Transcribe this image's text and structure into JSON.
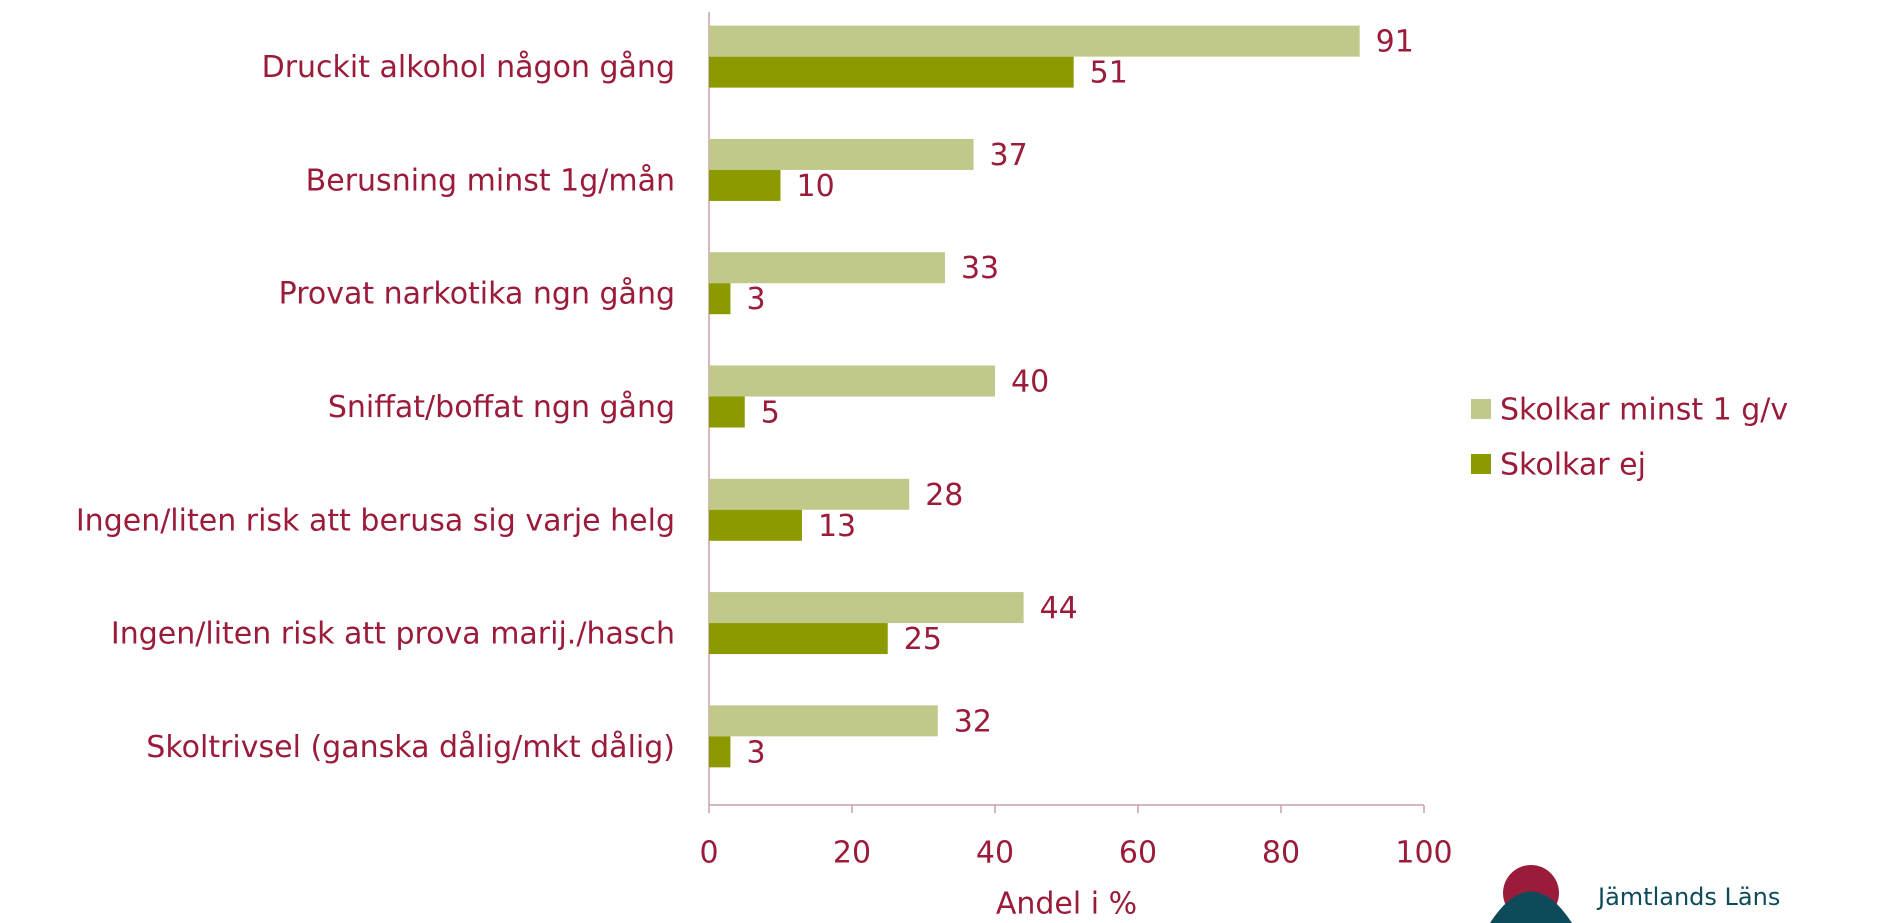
{
  "chart_data": {
    "type": "bar",
    "orientation": "horizontal",
    "categories": [
      "Druckit alkohol någon gång",
      "Berusning minst 1g/mån",
      "Provat narkotika ngn gång",
      "Sniffat/boffat ngn gång",
      "Ingen/liten risk att berusa sig varje helg",
      "Ingen/liten risk att prova marij./hasch",
      "Skoltrivsel (ganska dålig/mkt dålig)"
    ],
    "series": [
      {
        "name": "Skolkar minst 1 g/v",
        "color": "#c0c88a",
        "values": [
          91,
          37,
          33,
          40,
          28,
          44,
          32
        ]
      },
      {
        "name": "Skolkar ej",
        "color": "#8c9a00",
        "values": [
          51,
          10,
          3,
          5,
          13,
          25,
          3
        ]
      }
    ],
    "x_label": "Andel i %",
    "xlim": [
      0,
      100
    ],
    "xticks": [
      0,
      20,
      40,
      60,
      80,
      100
    ],
    "legend": "right",
    "text_color": "#9b1b3a"
  },
  "logo": {
    "text": "Jämtlands Läns"
  }
}
